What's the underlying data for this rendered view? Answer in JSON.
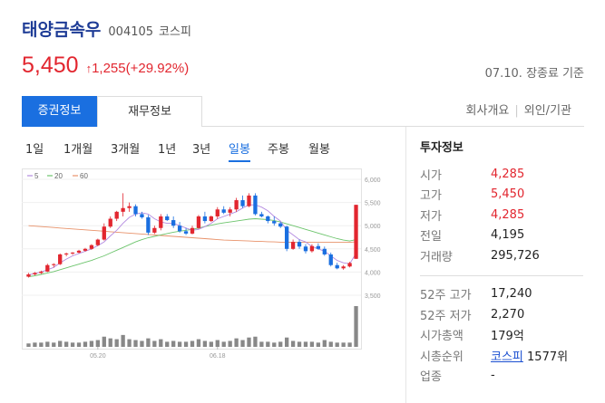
{
  "stock": {
    "name": "태양금속우",
    "code": "004105",
    "market": "코스피"
  },
  "price": {
    "current": "5,450",
    "arrow": "↑",
    "change": "1,255",
    "change_pct": "(+29.92%)",
    "date": "07.10.",
    "status": "장종료 기준"
  },
  "tabs": {
    "active": "증권정보",
    "second": "재무정보",
    "link1": "회사개요",
    "link2": "외인/기관"
  },
  "periods": [
    "1일",
    "1개월",
    "3개월",
    "1년",
    "3년",
    "일봉",
    "주봉",
    "월봉"
  ],
  "legend": [
    "5",
    "20",
    "60"
  ],
  "axis": {
    "y_ticks": [
      "6,000",
      "5,500",
      "5,000",
      "4,500",
      "4,000",
      "3,500"
    ],
    "x_ticks": [
      "05.20",
      "06.18"
    ]
  },
  "colors": {
    "up": "#e2262f",
    "down": "#1a6fe0",
    "ma5": "#b48be0",
    "ma20": "#6cc46c",
    "ma60": "#e8926a"
  },
  "info": {
    "title": "투자정보",
    "rows": [
      {
        "label": "시가",
        "value": "4,285"
      },
      {
        "label": "고가",
        "value": "5,450"
      },
      {
        "label": "저가",
        "value": "4,285"
      },
      {
        "label": "전일",
        "value": "4,195"
      },
      {
        "label": "거래량",
        "value": "295,726"
      }
    ],
    "rows2": [
      {
        "label": "52주 고가",
        "value": "17,240"
      },
      {
        "label": "52주 저가",
        "value": "2,270"
      },
      {
        "label": "시가총액",
        "value": "179억"
      }
    ],
    "rank_label": "시총순위",
    "rank_link": "코스피",
    "rank_value": "1577위",
    "sector_label": "업종",
    "sector_value": "-"
  },
  "chart_data": {
    "type": "candlestick",
    "ylim": [
      3500,
      6000
    ],
    "candles": [
      {
        "o": 3900,
        "h": 3980,
        "l": 3880,
        "c": 3950
      },
      {
        "o": 3950,
        "h": 4000,
        "l": 3930,
        "c": 3980
      },
      {
        "o": 3980,
        "h": 4030,
        "l": 3960,
        "c": 4010
      },
      {
        "o": 4010,
        "h": 4180,
        "l": 4000,
        "c": 4150
      },
      {
        "o": 4150,
        "h": 4190,
        "l": 4100,
        "c": 4170
      },
      {
        "o": 4170,
        "h": 4400,
        "l": 4150,
        "c": 4380
      },
      {
        "o": 4380,
        "h": 4420,
        "l": 4340,
        "c": 4400
      },
      {
        "o": 4400,
        "h": 4430,
        "l": 4370,
        "c": 4420
      },
      {
        "o": 4420,
        "h": 4480,
        "l": 4400,
        "c": 4460
      },
      {
        "o": 4460,
        "h": 4520,
        "l": 4440,
        "c": 4500
      },
      {
        "o": 4500,
        "h": 4600,
        "l": 4480,
        "c": 4580
      },
      {
        "o": 4580,
        "h": 4720,
        "l": 4560,
        "c": 4700
      },
      {
        "o": 4700,
        "h": 5050,
        "l": 4680,
        "c": 4980
      },
      {
        "o": 4980,
        "h": 5200,
        "l": 4950,
        "c": 5150
      },
      {
        "o": 5150,
        "h": 5320,
        "l": 5100,
        "c": 5300
      },
      {
        "o": 5300,
        "h": 5700,
        "l": 5200,
        "c": 5380
      },
      {
        "o": 5380,
        "h": 5500,
        "l": 5300,
        "c": 5420
      },
      {
        "o": 5420,
        "h": 5460,
        "l": 5200,
        "c": 5250
      },
      {
        "o": 5250,
        "h": 5300,
        "l": 5150,
        "c": 5180
      },
      {
        "o": 5180,
        "h": 5230,
        "l": 4800,
        "c": 4850
      },
      {
        "o": 4850,
        "h": 5000,
        "l": 4820,
        "c": 4950
      },
      {
        "o": 4950,
        "h": 5250,
        "l": 4900,
        "c": 5200
      },
      {
        "o": 5200,
        "h": 5250,
        "l": 5100,
        "c": 5120
      },
      {
        "o": 5120,
        "h": 5200,
        "l": 4950,
        "c": 5000
      },
      {
        "o": 5000,
        "h": 5080,
        "l": 4850,
        "c": 4880
      },
      {
        "o": 4880,
        "h": 4950,
        "l": 4800,
        "c": 4830
      },
      {
        "o": 4830,
        "h": 5000,
        "l": 4810,
        "c": 4950
      },
      {
        "o": 4950,
        "h": 5230,
        "l": 4930,
        "c": 5200
      },
      {
        "o": 5200,
        "h": 5300,
        "l": 5050,
        "c": 5100
      },
      {
        "o": 5100,
        "h": 5220,
        "l": 5080,
        "c": 5200
      },
      {
        "o": 5200,
        "h": 5400,
        "l": 5150,
        "c": 5350
      },
      {
        "o": 5350,
        "h": 5420,
        "l": 5250,
        "c": 5280
      },
      {
        "o": 5280,
        "h": 5400,
        "l": 5200,
        "c": 5350
      },
      {
        "o": 5350,
        "h": 5600,
        "l": 5300,
        "c": 5550
      },
      {
        "o": 5550,
        "h": 5650,
        "l": 5380,
        "c": 5420
      },
      {
        "o": 5420,
        "h": 5700,
        "l": 5400,
        "c": 5650
      },
      {
        "o": 5650,
        "h": 5700,
        "l": 5220,
        "c": 5250
      },
      {
        "o": 5250,
        "h": 5300,
        "l": 5180,
        "c": 5200
      },
      {
        "o": 5200,
        "h": 5220,
        "l": 5050,
        "c": 5100
      },
      {
        "o": 5100,
        "h": 5200,
        "l": 5000,
        "c": 5050
      },
      {
        "o": 5050,
        "h": 5080,
        "l": 4950,
        "c": 4980
      },
      {
        "o": 4980,
        "h": 5000,
        "l": 4450,
        "c": 4500
      },
      {
        "o": 4500,
        "h": 4700,
        "l": 4480,
        "c": 4650
      },
      {
        "o": 4650,
        "h": 4700,
        "l": 4500,
        "c": 4550
      },
      {
        "o": 4550,
        "h": 4600,
        "l": 4400,
        "c": 4450
      },
      {
        "o": 4450,
        "h": 4600,
        "l": 4420,
        "c": 4560
      },
      {
        "o": 4560,
        "h": 4620,
        "l": 4480,
        "c": 4500
      },
      {
        "o": 4500,
        "h": 4550,
        "l": 4350,
        "c": 4380
      },
      {
        "o": 4380,
        "h": 4420,
        "l": 4120,
        "c": 4150
      },
      {
        "o": 4150,
        "h": 4200,
        "l": 4060,
        "c": 4080
      },
      {
        "o": 4080,
        "h": 4150,
        "l": 4050,
        "c": 4120
      },
      {
        "o": 4120,
        "h": 4220,
        "l": 4100,
        "c": 4195
      },
      {
        "o": 4285,
        "h": 5450,
        "l": 4285,
        "c": 5450
      }
    ],
    "ma5": [
      3940,
      3970,
      4000,
      4050,
      4100,
      4200,
      4280,
      4350,
      4400,
      4450,
      4500,
      4570,
      4650,
      4780,
      4900,
      5050,
      5180,
      5250,
      5280,
      5250,
      5150,
      5080,
      5050,
      5050,
      5000,
      4950,
      4900,
      4920,
      4980,
      5050,
      5150,
      5200,
      5250,
      5300,
      5380,
      5450,
      5450,
      5400,
      5320,
      5200,
      5100,
      4900,
      4800,
      4700,
      4650,
      4550,
      4500,
      4450,
      4350,
      4250,
      4200,
      4180,
      4400
    ],
    "ma20": [
      3900,
      3920,
      3950,
      3980,
      4010,
      4050,
      4090,
      4130,
      4170,
      4210,
      4250,
      4300,
      4350,
      4410,
      4470,
      4530,
      4590,
      4650,
      4700,
      4740,
      4770,
      4800,
      4830,
      4860,
      4880,
      4900,
      4920,
      4950,
      4980,
      5010,
      5040,
      5060,
      5080,
      5100,
      5120,
      5140,
      5150,
      5140,
      5130,
      5110,
      5080,
      5040,
      5000,
      4960,
      4920,
      4880,
      4840,
      4800,
      4760,
      4720,
      4690,
      4670,
      4700
    ],
    "ma60": [
      5000,
      4990,
      4980,
      4970,
      4960,
      4950,
      4940,
      4930,
      4920,
      4910,
      4900,
      4890,
      4880,
      4870,
      4860,
      4850,
      4840,
      4830,
      4820,
      4810,
      4800,
      4790,
      4780,
      4770,
      4760,
      4750,
      4740,
      4730,
      4720,
      4710,
      4700,
      4690,
      4685,
      4680,
      4675,
      4670,
      4665,
      4660,
      4655,
      4650,
      4645,
      4640,
      4640,
      4640,
      4640,
      4640,
      4640,
      4640,
      4640,
      4640,
      4640,
      4640,
      4650
    ],
    "volume": [
      4,
      5,
      5,
      6,
      5,
      7,
      6,
      5,
      5,
      6,
      7,
      8,
      12,
      10,
      9,
      14,
      9,
      8,
      7,
      10,
      7,
      9,
      6,
      7,
      6,
      6,
      7,
      9,
      7,
      6,
      8,
      6,
      7,
      10,
      8,
      11,
      12,
      6,
      6,
      5,
      6,
      11,
      7,
      6,
      6,
      6,
      5,
      8,
      6,
      5,
      5,
      5,
      48
    ]
  }
}
